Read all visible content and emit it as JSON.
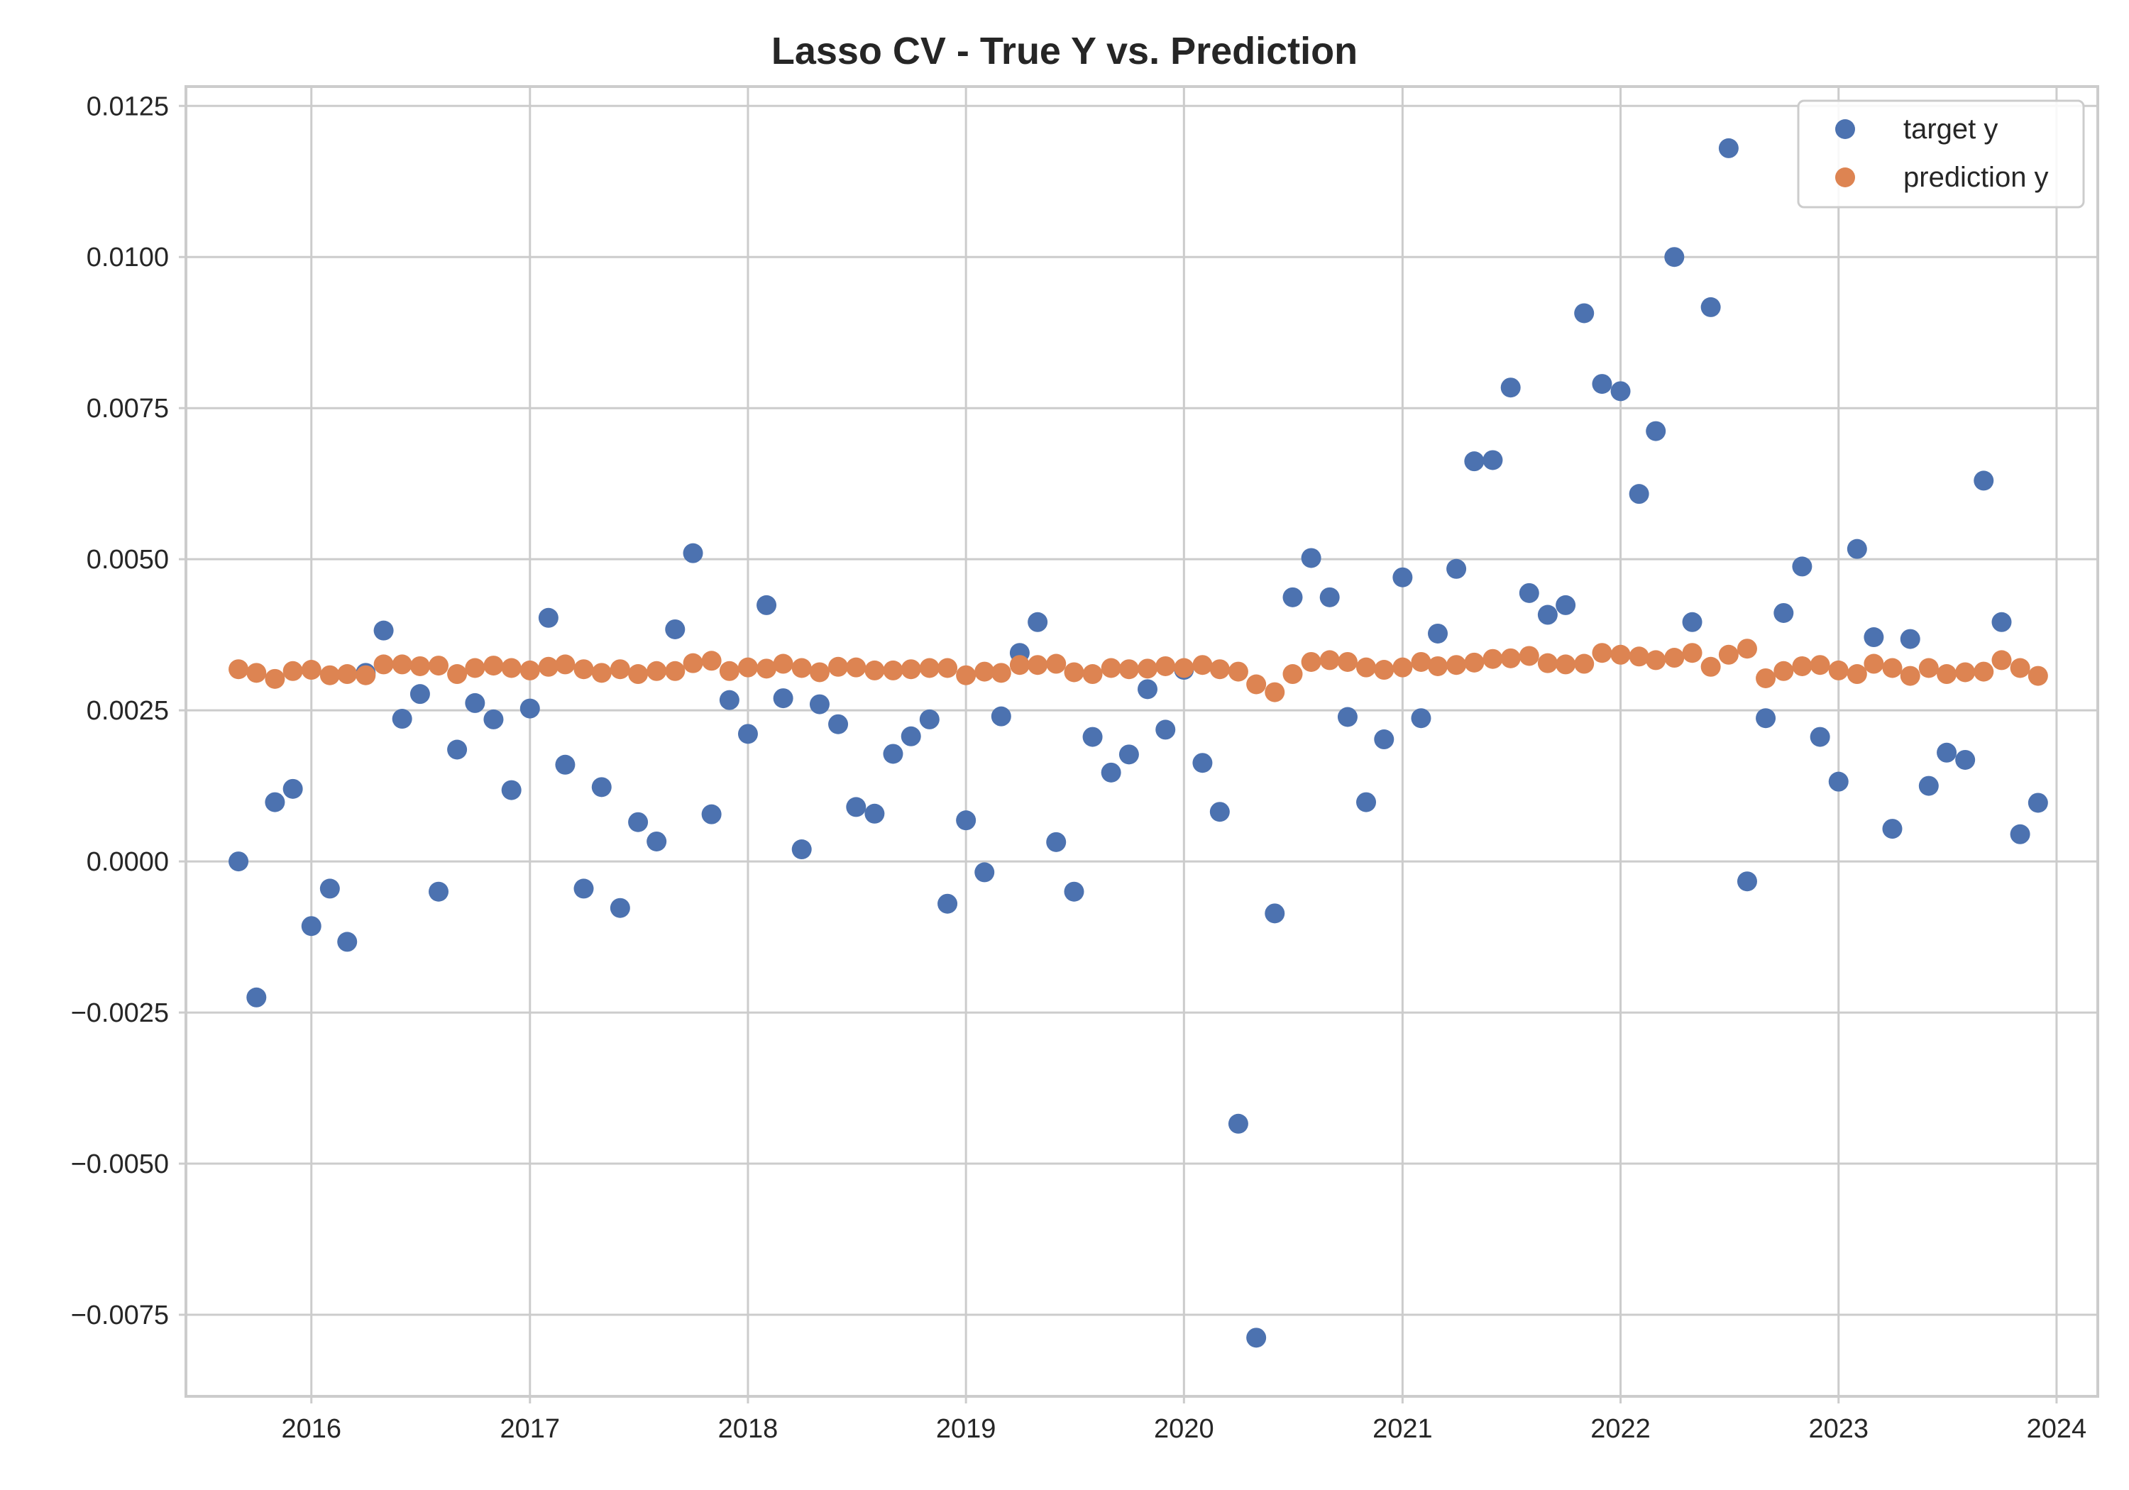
{
  "chart_data": {
    "type": "scatter",
    "title": "Lasso CV - True Y vs. Prediction",
    "xlabel": "",
    "ylabel": "",
    "x_axis": {
      "type": "date",
      "range": [
        "2015-06-05",
        "2024-03-10"
      ],
      "ticks": [
        {
          "value": "2016-01-01",
          "label": "2016"
        },
        {
          "value": "2017-01-01",
          "label": "2017"
        },
        {
          "value": "2018-01-01",
          "label": "2018"
        },
        {
          "value": "2019-01-01",
          "label": "2019"
        },
        {
          "value": "2020-01-01",
          "label": "2020"
        },
        {
          "value": "2021-01-01",
          "label": "2021"
        },
        {
          "value": "2022-01-01",
          "label": "2022"
        },
        {
          "value": "2023-01-01",
          "label": "2023"
        },
        {
          "value": "2024-01-01",
          "label": "2024"
        }
      ]
    },
    "y_axis": {
      "range": [
        -0.00885,
        0.01282
      ],
      "ticks": [
        {
          "value": -0.0075,
          "label": "−0.0075"
        },
        {
          "value": -0.005,
          "label": "−0.0050"
        },
        {
          "value": -0.0025,
          "label": "−0.0025"
        },
        {
          "value": 0.0,
          "label": "0.0000"
        },
        {
          "value": 0.0025,
          "label": "0.0025"
        },
        {
          "value": 0.005,
          "label": "0.0050"
        },
        {
          "value": 0.0075,
          "label": "0.0075"
        },
        {
          "value": 0.01,
          "label": "0.0100"
        },
        {
          "value": 0.0125,
          "label": "0.0125"
        }
      ]
    },
    "grid": true,
    "legend_position": "top-right",
    "x": [
      "2015-09-01",
      "2015-10-01",
      "2015-11-01",
      "2015-12-01",
      "2016-01-01",
      "2016-02-01",
      "2016-03-01",
      "2016-04-01",
      "2016-05-01",
      "2016-06-01",
      "2016-07-01",
      "2016-08-01",
      "2016-09-01",
      "2016-10-01",
      "2016-11-01",
      "2016-12-01",
      "2017-01-01",
      "2017-02-01",
      "2017-03-01",
      "2017-04-01",
      "2017-05-01",
      "2017-06-01",
      "2017-07-01",
      "2017-08-01",
      "2017-09-01",
      "2017-10-01",
      "2017-11-01",
      "2017-12-01",
      "2018-01-01",
      "2018-02-01",
      "2018-03-01",
      "2018-04-01",
      "2018-05-01",
      "2018-06-01",
      "2018-07-01",
      "2018-08-01",
      "2018-09-01",
      "2018-10-01",
      "2018-11-01",
      "2018-12-01",
      "2019-01-01",
      "2019-02-01",
      "2019-03-01",
      "2019-04-01",
      "2019-05-01",
      "2019-06-01",
      "2019-07-01",
      "2019-08-01",
      "2019-09-01",
      "2019-10-01",
      "2019-11-01",
      "2019-12-01",
      "2020-01-01",
      "2020-02-01",
      "2020-03-01",
      "2020-04-01",
      "2020-05-01",
      "2020-06-01",
      "2020-07-01",
      "2020-08-01",
      "2020-09-01",
      "2020-10-01",
      "2020-11-01",
      "2020-12-01",
      "2021-01-01",
      "2021-02-01",
      "2021-03-01",
      "2021-04-01",
      "2021-05-01",
      "2021-06-01",
      "2021-07-01",
      "2021-08-01",
      "2021-09-01",
      "2021-10-01",
      "2021-11-01",
      "2021-12-01",
      "2022-01-01",
      "2022-02-01",
      "2022-03-01",
      "2022-04-01",
      "2022-05-01",
      "2022-06-01",
      "2022-07-01",
      "2022-08-01",
      "2022-09-01",
      "2022-10-01",
      "2022-11-01",
      "2022-12-01",
      "2023-01-01",
      "2023-02-01",
      "2023-03-01",
      "2023-04-01",
      "2023-05-01",
      "2023-06-01",
      "2023-07-01",
      "2023-08-01",
      "2023-09-01",
      "2023-10-01",
      "2023-11-01",
      "2023-12-01"
    ],
    "series": [
      {
        "name": "target y",
        "color": "#4c72b0",
        "values": [
          0.0,
          -0.00225,
          0.00098,
          0.0012,
          -0.00107,
          -0.00045,
          -0.00133,
          0.00312,
          0.00382,
          0.00236,
          0.00277,
          -0.0005,
          0.00185,
          0.00262,
          0.00235,
          0.00118,
          0.00253,
          0.00403,
          0.0016,
          -0.00045,
          0.00123,
          -0.00077,
          0.00065,
          0.00033,
          0.00384,
          0.0051,
          0.00078,
          0.00267,
          0.00211,
          0.00424,
          0.0027,
          0.0002,
          0.0026,
          0.00227,
          0.0009,
          0.00079,
          0.00178,
          0.00207,
          0.00235,
          -0.0007,
          0.00068,
          -0.00018,
          0.0024,
          0.00345,
          0.00396,
          0.00032,
          -0.0005,
          0.00206,
          0.00147,
          0.00177,
          0.00285,
          0.00218,
          0.00317,
          0.00163,
          0.00082,
          -0.00434,
          -0.00788,
          -0.00086,
          0.00437,
          0.00502,
          0.00437,
          0.00239,
          0.00098,
          0.00202,
          0.0047,
          0.00237,
          0.00377,
          0.00484,
          0.00662,
          0.00664,
          0.00784,
          0.00444,
          0.00408,
          0.00424,
          0.00907,
          0.0079,
          0.00778,
          0.00608,
          0.00712,
          0.01,
          0.00396,
          0.00917,
          0.0118,
          -0.00033,
          0.00237,
          0.00411,
          0.00488,
          0.00206,
          0.00132,
          0.00517,
          0.00371,
          0.00054,
          0.00368,
          0.00125,
          0.0018,
          0.00168,
          0.0063,
          0.00396,
          0.00045,
          0.00097
        ]
      },
      {
        "name": "prediction y",
        "color": "#dd8452",
        "values": [
          0.00318,
          0.00312,
          0.00302,
          0.00315,
          0.00317,
          0.00308,
          0.0031,
          0.00308,
          0.00326,
          0.00326,
          0.00323,
          0.00324,
          0.0031,
          0.0032,
          0.00324,
          0.0032,
          0.00316,
          0.00322,
          0.00326,
          0.00318,
          0.00312,
          0.00318,
          0.0031,
          0.00315,
          0.00315,
          0.00328,
          0.00332,
          0.00315,
          0.00321,
          0.00319,
          0.00327,
          0.0032,
          0.00313,
          0.00322,
          0.00321,
          0.00316,
          0.00316,
          0.00318,
          0.0032,
          0.0032,
          0.00308,
          0.00314,
          0.00312,
          0.00325,
          0.00325,
          0.00327,
          0.00313,
          0.0031,
          0.0032,
          0.00318,
          0.00319,
          0.00323,
          0.0032,
          0.00325,
          0.00318,
          0.00314,
          0.00293,
          0.0028,
          0.0031,
          0.0033,
          0.00333,
          0.0033,
          0.00321,
          0.00317,
          0.00321,
          0.0033,
          0.00323,
          0.00325,
          0.00329,
          0.00335,
          0.00336,
          0.0034,
          0.00328,
          0.00326,
          0.00327,
          0.00345,
          0.00342,
          0.00339,
          0.00333,
          0.00337,
          0.00345,
          0.00322,
          0.00342,
          0.00352,
          0.00303,
          0.00315,
          0.00323,
          0.00325,
          0.00316,
          0.0031,
          0.00327,
          0.0032,
          0.00307,
          0.0032,
          0.0031,
          0.00313,
          0.00314,
          0.00333,
          0.0032,
          0.00307
        ]
      }
    ]
  }
}
